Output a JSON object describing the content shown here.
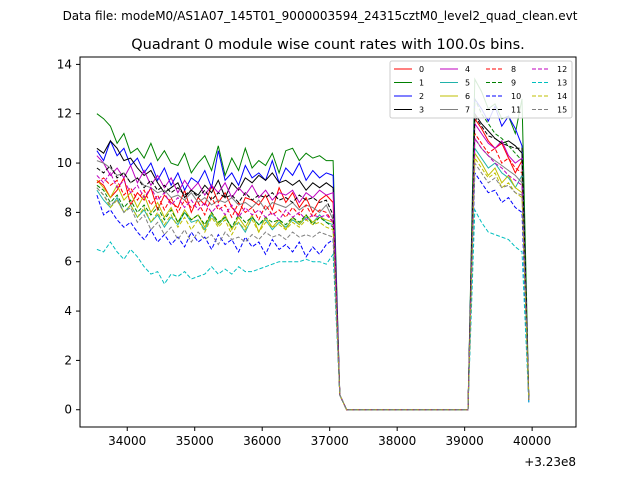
{
  "chart_data": {
    "type": "line",
    "suptitle": "Data file: modeM0/AS1A07_145T01_9000003594_24315cztM0_level2_quad_clean.evt",
    "title": "Quadrant 0 module wise count rates with 100.0s bins.",
    "xlabel": "",
    "ylabel": "",
    "x_offset_label": "+3.23e8",
    "xlim": [
      33300,
      40650
    ],
    "ylim": [
      -0.7,
      14.3
    ],
    "xticks": [
      34000,
      35000,
      36000,
      37000,
      38000,
      39000,
      40000
    ],
    "xtick_labels": [
      "34000",
      "35000",
      "36000",
      "37000",
      "38000",
      "39000",
      "40000"
    ],
    "yticks": [
      0,
      2,
      4,
      6,
      8,
      10,
      12,
      14
    ],
    "ytick_labels": [
      "0",
      "2",
      "4",
      "6",
      "8",
      "10",
      "12",
      "14"
    ],
    "legend_position": "upper right",
    "x_start": 33550,
    "x_step": 100,
    "gap_start_index": 36,
    "gap_end_index": 56,
    "segment1_count": 36,
    "segment2_count": 8,
    "series": [
      {
        "name": "0",
        "color": "#ff0000",
        "dash": "solid",
        "seg1": [
          9.3,
          9.1,
          8.6,
          8.9,
          9.4,
          8.3,
          8.8,
          8.5,
          9.0,
          8.1,
          8.7,
          8.4,
          8.2,
          8.9,
          8.0,
          8.6,
          8.3,
          9.1,
          8.4,
          8.8,
          8.2,
          7.9,
          8.6,
          8.5,
          8.3,
          8.7,
          8.1,
          9.0,
          8.4,
          8.8,
          8.2,
          8.6,
          8.0,
          8.5,
          8.7,
          8.4
        ],
        "seg2": [
          11.8,
          11.4,
          10.9,
          10.6,
          10.8,
          10.2,
          9.6,
          10.1
        ],
        "end": 0.4
      },
      {
        "name": "1",
        "color": "#008000",
        "dash": "solid",
        "seg1": [
          12.0,
          11.8,
          11.5,
          10.8,
          11.2,
          10.4,
          10.6,
          10.2,
          10.8,
          10.1,
          10.5,
          10.0,
          9.9,
          10.4,
          9.6,
          10.0,
          10.3,
          9.7,
          10.7,
          9.5,
          10.2,
          9.7,
          10.6,
          9.8,
          10.1,
          9.9,
          10.4,
          9.6,
          10.5,
          10.6,
          10.1,
          10.4,
          10.2,
          10.3,
          10.1,
          10.1
        ],
        "seg2": [
          13.4,
          12.9,
          12.2,
          12.4,
          11.8,
          11.9,
          11.2,
          12.6
        ],
        "end": 0.5
      },
      {
        "name": "2",
        "color": "#0000ff",
        "dash": "solid",
        "seg1": [
          10.5,
          10.1,
          10.9,
          10.3,
          10.6,
          9.9,
          10.2,
          9.6,
          10.0,
          9.3,
          9.8,
          9.1,
          9.6,
          8.9,
          9.4,
          9.2,
          9.7,
          9.0,
          10.5,
          9.3,
          9.6,
          9.1,
          9.9,
          9.4,
          9.6,
          9.3,
          10.1,
          9.2,
          9.8,
          9.5,
          10.0,
          9.3,
          9.7,
          9.4,
          9.6,
          9.5
        ],
        "seg2": [
          12.6,
          12.2,
          11.7,
          12.3,
          11.5,
          11.9,
          11.4,
          10.7
        ],
        "end": 0.4
      },
      {
        "name": "3",
        "color": "#000000",
        "dash": "solid",
        "seg1": [
          10.6,
          10.4,
          10.9,
          10.6,
          10.1,
          10.2,
          9.8,
          9.5,
          9.7,
          9.2,
          8.8,
          9.0,
          9.2,
          8.6,
          8.9,
          8.7,
          9.1,
          8.8,
          9.3,
          8.6,
          9.2,
          8.9,
          9.4,
          9.2,
          9.5,
          9.3,
          9.6,
          9.2,
          9.3,
          9.1,
          9.3,
          8.9,
          9.2,
          9.0,
          9.2,
          9.0
        ],
        "seg2": [
          12.0,
          11.6,
          11.3,
          11.0,
          10.8,
          10.9,
          10.7,
          10.4
        ],
        "end": 0.4
      },
      {
        "name": "4",
        "color": "#bf00bf",
        "dash": "solid",
        "seg1": [
          10.3,
          10.0,
          9.5,
          9.8,
          9.4,
          9.9,
          9.2,
          9.7,
          9.1,
          9.5,
          9.0,
          9.4,
          8.8,
          9.3,
          8.9,
          9.2,
          8.7,
          9.1,
          8.8,
          9.2,
          8.6,
          9.0,
          8.7,
          9.1,
          8.6,
          8.9,
          8.5,
          8.8,
          8.7,
          8.9,
          8.4,
          8.8,
          8.6,
          8.9,
          8.7,
          8.8
        ],
        "seg2": [
          11.6,
          11.2,
          10.8,
          10.6,
          10.9,
          10.3,
          10.0,
          10.2
        ],
        "end": 0.4
      },
      {
        "name": "5",
        "color": "#20b2aa",
        "dash": "solid",
        "seg1": [
          8.9,
          8.5,
          8.2,
          8.6,
          8.0,
          8.3,
          7.8,
          8.1,
          7.6,
          7.9,
          7.4,
          7.8,
          7.5,
          8.0,
          7.6,
          7.7,
          7.3,
          7.9,
          7.5,
          7.8,
          7.4,
          7.6,
          7.2,
          7.8,
          7.5,
          7.7,
          7.3,
          7.6,
          7.4,
          7.7,
          7.5,
          7.8,
          7.6,
          7.9,
          7.6,
          7.5
        ],
        "seg2": [
          10.6,
          10.2,
          9.8,
          10.0,
          9.6,
          9.4,
          9.0,
          9.5
        ],
        "end": 0.4
      },
      {
        "name": "6",
        "color": "#bfbf00",
        "dash": "solid",
        "seg1": [
          9.3,
          9.0,
          8.6,
          9.1,
          8.5,
          8.8,
          8.2,
          8.7,
          8.0,
          8.4,
          7.8,
          8.2,
          7.6,
          8.1,
          7.7,
          7.9,
          7.4,
          8.0,
          7.5,
          7.9,
          7.3,
          7.8,
          7.4,
          7.9,
          7.2,
          7.8,
          7.4,
          7.7,
          7.3,
          7.8,
          7.5,
          7.9,
          7.6,
          7.8,
          7.7,
          7.6
        ],
        "seg2": [
          10.4,
          10.0,
          9.5,
          9.8,
          9.2,
          9.5,
          9.0,
          8.8
        ],
        "end": 0.4
      },
      {
        "name": "7",
        "color": "#808080",
        "dash": "solid",
        "seg1": [
          10.1,
          10.0,
          9.8,
          9.5,
          9.6,
          9.2,
          9.4,
          9.1,
          9.0,
          8.8,
          8.9,
          8.6,
          8.7,
          8.5,
          8.8,
          8.4,
          8.6,
          8.3,
          8.5,
          8.4,
          8.6,
          8.3,
          8.4,
          8.2,
          8.5,
          8.1,
          8.4,
          8.3,
          8.2,
          8.4,
          8.1,
          8.3,
          8.2,
          8.0,
          8.3,
          7.7
        ],
        "seg2": [
          11.0,
          10.6,
          10.3,
          10.1,
          9.9,
          9.7,
          9.5,
          9.2
        ],
        "end": 0.4
      },
      {
        "name": "8",
        "color": "#ff0000",
        "dash": "dashed",
        "seg1": [
          9.2,
          9.4,
          9.1,
          9.3,
          8.7,
          9.0,
          8.5,
          8.9,
          8.3,
          8.7,
          8.1,
          8.6,
          8.0,
          8.5,
          8.2,
          8.4,
          7.9,
          8.6,
          8.1,
          8.3,
          7.8,
          8.4,
          8.0,
          8.2,
          7.7,
          8.3,
          7.9,
          8.1,
          7.8,
          8.2,
          7.9,
          8.3,
          7.8,
          8.1,
          8.0,
          7.6
        ],
        "seg2": [
          11.2,
          10.8,
          10.4,
          10.6,
          10.0,
          10.2,
          9.8,
          9.6
        ],
        "end": 0.4
      },
      {
        "name": "9",
        "color": "#008000",
        "dash": "dashed",
        "seg1": [
          9.1,
          8.9,
          8.4,
          8.7,
          8.2,
          8.5,
          8.0,
          8.3,
          7.9,
          8.2,
          7.7,
          8.1,
          7.6,
          8.0,
          7.7,
          7.9,
          7.5,
          8.0,
          7.6,
          7.8,
          7.4,
          7.9,
          7.6,
          7.8,
          7.5,
          7.8,
          7.6,
          7.7,
          7.5,
          7.8,
          7.6,
          7.9,
          7.5,
          7.8,
          7.6,
          7.4
        ],
        "seg2": [
          12.6,
          12.0,
          11.6,
          11.2,
          11.0,
          10.7,
          10.4,
          10.1
        ],
        "end": 0.4
      },
      {
        "name": "10",
        "color": "#0000ff",
        "dash": "dashed",
        "seg1": [
          8.7,
          7.9,
          8.1,
          7.7,
          7.4,
          7.6,
          7.2,
          6.9,
          7.3,
          6.8,
          7.1,
          6.7,
          7.0,
          6.6,
          7.2,
          6.8,
          7.0,
          6.5,
          7.1,
          6.7,
          6.9,
          6.4,
          7.0,
          6.6,
          6.8,
          6.3,
          6.9,
          6.5,
          6.7,
          6.4,
          6.8,
          6.2,
          6.6,
          6.3,
          6.7,
          6.9
        ],
        "seg2": [
          9.6,
          9.2,
          8.8,
          8.9,
          8.4,
          8.6,
          8.2,
          8.0
        ],
        "end": 0.3
      },
      {
        "name": "11",
        "color": "#000000",
        "dash": "dashed",
        "seg1": [
          9.8,
          9.6,
          9.9,
          9.4,
          9.6,
          9.2,
          9.4,
          9.0,
          9.3,
          8.9,
          9.1,
          8.8,
          9.0,
          8.7,
          8.9,
          8.6,
          8.9,
          8.5,
          8.8,
          8.6,
          8.7,
          8.4,
          8.8,
          8.5,
          8.7,
          8.6,
          8.8,
          8.5,
          8.6,
          8.4,
          8.7,
          8.5,
          8.6,
          8.4,
          8.5,
          7.9
        ],
        "seg2": [
          11.9,
          11.5,
          11.1,
          11.0,
          10.8,
          10.7,
          10.6,
          10.6
        ],
        "end": 0.4
      },
      {
        "name": "12",
        "color": "#bf00bf",
        "dash": "dashed",
        "seg1": [
          9.5,
          9.2,
          9.6,
          9.0,
          9.3,
          8.8,
          9.1,
          8.6,
          9.0,
          8.5,
          8.8,
          8.3,
          8.6,
          8.2,
          8.5,
          8.1,
          8.4,
          8.0,
          8.3,
          7.9,
          8.3,
          7.8,
          8.2,
          7.9,
          8.1,
          7.8,
          8.0,
          7.7,
          8.1,
          7.8,
          8.0,
          7.7,
          7.9,
          7.8,
          7.9,
          7.6
        ],
        "seg2": [
          11.0,
          10.6,
          10.3,
          10.0,
          9.8,
          9.5,
          9.3,
          9.1
        ],
        "end": 0.4
      },
      {
        "name": "13",
        "color": "#00bfbf",
        "dash": "dashed",
        "seg1": [
          6.5,
          6.4,
          6.8,
          6.4,
          6.1,
          6.5,
          6.2,
          5.8,
          5.5,
          5.6,
          5.1,
          5.5,
          5.4,
          5.6,
          5.3,
          5.4,
          5.5,
          5.8,
          5.5,
          5.7,
          5.5,
          5.8,
          5.6,
          5.6,
          5.7,
          5.8,
          5.9,
          6.0,
          6.0,
          6.0,
          6.0,
          6.1,
          6.0,
          6.0,
          5.9,
          6.3
        ],
        "seg2": [
          8.1,
          7.6,
          7.2,
          7.1,
          7.0,
          6.9,
          6.6,
          6.4
        ],
        "end": 0.3
      },
      {
        "name": "14",
        "color": "#bfbf00",
        "dash": "dashed",
        "seg1": [
          9.0,
          8.7,
          8.2,
          8.5,
          8.0,
          8.3,
          7.8,
          8.2,
          7.6,
          8.0,
          7.5,
          7.9,
          7.4,
          7.8,
          7.3,
          7.7,
          7.2,
          7.8,
          7.4,
          7.7,
          7.1,
          7.6,
          7.3,
          7.7,
          7.2,
          7.6,
          7.4,
          7.5,
          7.3,
          7.6,
          7.4,
          7.7,
          7.5,
          7.6,
          7.4,
          7.3
        ],
        "seg2": [
          10.2,
          9.8,
          9.4,
          9.6,
          9.0,
          9.2,
          8.8,
          8.6
        ],
        "end": 0.4
      },
      {
        "name": "15",
        "color": "#808080",
        "dash": "dashed",
        "seg1": [
          9.0,
          8.7,
          8.3,
          8.5,
          8.0,
          8.2,
          7.6,
          7.9,
          7.3,
          7.6,
          7.1,
          7.4,
          6.9,
          7.3,
          6.8,
          7.2,
          6.9,
          7.1,
          6.7,
          7.2,
          6.9,
          7.0,
          6.8,
          7.1,
          6.9,
          7.2,
          7.0,
          7.1,
          6.9,
          7.2,
          7.0,
          7.1,
          7.0,
          7.2,
          7.1,
          7.0
        ],
        "seg2": [
          10.0,
          9.6,
          9.2,
          9.4,
          9.0,
          9.1,
          8.8,
          8.7
        ],
        "end": 0.4
      }
    ]
  }
}
